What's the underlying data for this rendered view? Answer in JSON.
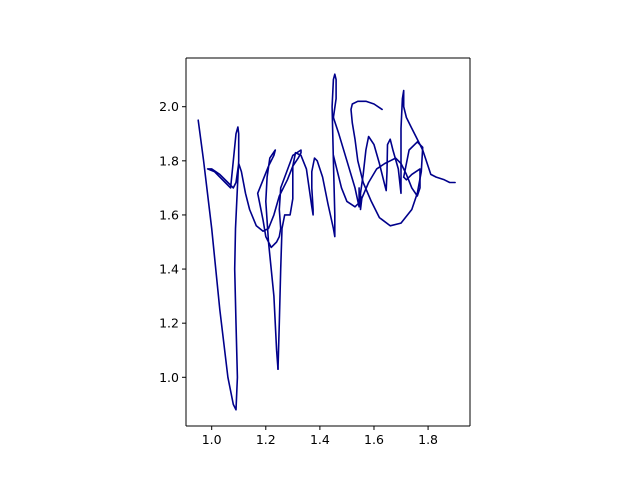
{
  "chart_data": {
    "type": "line",
    "title": "",
    "xlabel": "",
    "ylabel": "",
    "xlim": [
      0.905,
      1.955
    ],
    "ylim": [
      0.82,
      2.18
    ],
    "xticks": [
      1.0,
      1.2,
      1.4,
      1.6,
      1.8
    ],
    "yticks": [
      1.0,
      1.2,
      1.4,
      1.6,
      1.8,
      2.0
    ],
    "xtick_labels": [
      "1.0",
      "1.2",
      "1.4",
      "1.6",
      "1.8"
    ],
    "ytick_labels": [
      "1.0",
      "1.2",
      "1.4",
      "1.6",
      "1.8",
      "2.0"
    ],
    "grid": false,
    "line_color": "#00008b",
    "series": [
      {
        "x": [
          0.95,
          0.97,
          1.0,
          1.03,
          1.06,
          1.08,
          1.09,
          1.095,
          1.09,
          1.085,
          1.088,
          1.095,
          1.1,
          1.1,
          1.097,
          1.09,
          1.07,
          1.05,
          1.01,
          0.985,
          1.0,
          1.03,
          1.06,
          1.08,
          1.09,
          1.1,
          1.11,
          1.125,
          1.14,
          1.165,
          1.19,
          1.21,
          1.23,
          1.25,
          1.28,
          1.3,
          1.32,
          1.33,
          1.33,
          1.3,
          1.255,
          1.25,
          1.255,
          1.25,
          1.24,
          1.22,
          1.2,
          1.19,
          1.18,
          1.17,
          1.19,
          1.21,
          1.23,
          1.235,
          1.215,
          1.205,
          1.2,
          1.21,
          1.23,
          1.24,
          1.245
        ],
        "y": [
          1.95,
          1.8,
          1.55,
          1.25,
          1.0,
          0.9,
          0.88,
          1.0,
          1.2,
          1.4,
          1.55,
          1.7,
          1.8,
          1.9,
          1.925,
          1.9,
          1.7,
          1.72,
          1.76,
          1.77,
          1.77,
          1.75,
          1.72,
          1.7,
          1.72,
          1.79,
          1.76,
          1.68,
          1.62,
          1.56,
          1.54,
          1.55,
          1.6,
          1.67,
          1.73,
          1.78,
          1.81,
          1.83,
          1.84,
          1.82,
          1.7,
          1.62,
          1.55,
          1.52,
          1.5,
          1.48,
          1.52,
          1.58,
          1.63,
          1.68,
          1.73,
          1.78,
          1.82,
          1.84,
          1.81,
          1.74,
          1.65,
          1.5,
          1.3,
          1.1,
          1.03
        ]
      },
      {
        "x": [
          1.245,
          1.25,
          1.255,
          1.26,
          1.27,
          1.29,
          1.3,
          1.3,
          1.31,
          1.33,
          1.35,
          1.36,
          1.37,
          1.375,
          1.375,
          1.37,
          1.37,
          1.38,
          1.39,
          1.41,
          1.43,
          1.45,
          1.455,
          1.455,
          1.45,
          1.445,
          1.45,
          1.455,
          1.46,
          1.46,
          1.45
        ],
        "y": [
          1.03,
          1.2,
          1.4,
          1.55,
          1.6,
          1.6,
          1.66,
          1.78,
          1.83,
          1.82,
          1.77,
          1.7,
          1.63,
          1.6,
          1.62,
          1.7,
          1.76,
          1.81,
          1.8,
          1.74,
          1.64,
          1.55,
          1.52,
          1.6,
          1.8,
          2.0,
          2.1,
          2.12,
          2.1,
          2.03,
          1.96
        ]
      },
      {
        "x": [
          1.45,
          1.47,
          1.5,
          1.53,
          1.545,
          1.545,
          1.545,
          1.55,
          1.55,
          1.555,
          1.55,
          1.55,
          1.56,
          1.57,
          1.58,
          1.6,
          1.62,
          1.64,
          1.645,
          1.648,
          1.65,
          1.66,
          1.67,
          1.69,
          1.7,
          1.7,
          1.7,
          1.705,
          1.71,
          1.71,
          1.72,
          1.74,
          1.76,
          1.78,
          1.79,
          1.8,
          1.81,
          1.83,
          1.86,
          1.88,
          1.9
        ],
        "y": [
          1.96,
          1.9,
          1.8,
          1.7,
          1.63,
          1.7,
          1.68,
          1.64,
          1.67,
          1.66,
          1.62,
          1.68,
          1.75,
          1.84,
          1.89,
          1.86,
          1.79,
          1.71,
          1.69,
          1.76,
          1.86,
          1.88,
          1.84,
          1.77,
          1.68,
          1.8,
          1.92,
          2.03,
          2.06,
          2.0,
          1.96,
          1.92,
          1.88,
          1.84,
          1.81,
          1.78,
          1.75,
          1.74,
          1.73,
          1.72,
          1.72
        ]
      },
      {
        "x": [
          1.45,
          1.48,
          1.5,
          1.53,
          1.55,
          1.58,
          1.61,
          1.64,
          1.66,
          1.68,
          1.7,
          1.72,
          1.74,
          1.76,
          1.77,
          1.77,
          1.74,
          1.72,
          1.71
        ],
        "y": [
          1.82,
          1.7,
          1.65,
          1.63,
          1.65,
          1.72,
          1.77,
          1.79,
          1.8,
          1.81,
          1.79,
          1.75,
          1.7,
          1.67,
          1.7,
          1.77,
          1.75,
          1.73,
          1.74
        ]
      },
      {
        "x": [
          1.71,
          1.73,
          1.76,
          1.78,
          1.775,
          1.76,
          1.74,
          1.7,
          1.66,
          1.62,
          1.59,
          1.56,
          1.54,
          1.53,
          1.52,
          1.515,
          1.52,
          1.54,
          1.57,
          1.6,
          1.63
        ],
        "y": [
          1.74,
          1.84,
          1.87,
          1.85,
          1.76,
          1.68,
          1.62,
          1.57,
          1.56,
          1.59,
          1.65,
          1.72,
          1.8,
          1.88,
          1.94,
          1.99,
          2.01,
          2.02,
          2.02,
          2.01,
          1.99
        ]
      }
    ]
  }
}
